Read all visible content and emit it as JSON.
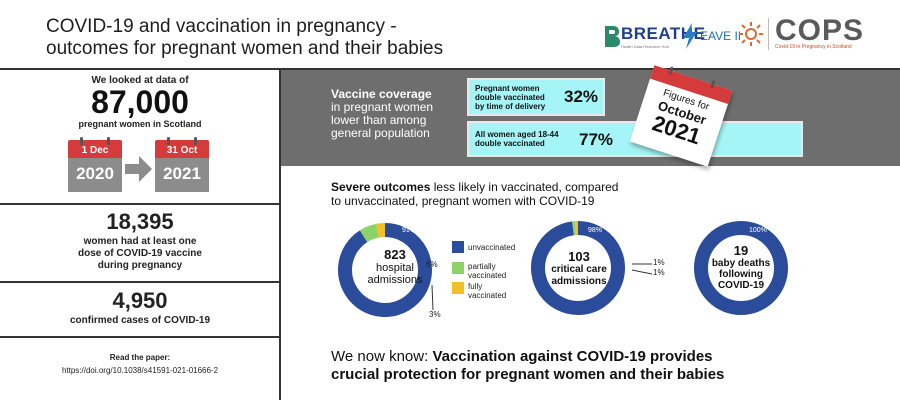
{
  "header": {
    "title_line1": "COVID-19 and vaccination in pregnancy -",
    "title_line2": "outcomes for pregnant women and their babies",
    "logos": {
      "breathe": "BREATHE",
      "breathe_sub": "Health Data Research Hub",
      "eave": "EAVE II",
      "cops": "COPS",
      "cops_sub": "Covid-19 in Pregnancy in Scotland"
    }
  },
  "left": {
    "looked_at": "We looked at data of",
    "total": "87,000",
    "population": "pregnant women in Scotland",
    "start_day": "1 Dec",
    "start_year": "2020",
    "end_day": "31 Oct",
    "end_year": "2021",
    "vaccinated_count": "18,395",
    "vaccinated_text_1": "women had at least one",
    "vaccinated_text_2": "dose of COVID-19 vaccine",
    "vaccinated_text_3": "during pregnancy",
    "cases_count": "4,950",
    "cases_text": "confirmed cases of COVID-19",
    "paper_label": "Read the paper:",
    "paper_doi": "https://doi.org/10.1038/s41591-021-01666-2"
  },
  "coverage": {
    "heading": "Vaccine coverage",
    "sub1": "in pregnant women",
    "sub2": "lower than among",
    "sub3": "general population",
    "pregnant_label_1": "Pregnant women",
    "pregnant_label_2": "double vaccinated",
    "pregnant_label_3": "by time of delivery",
    "pregnant_pct": "32%",
    "all_label_1": "All women aged 18-44",
    "all_label_2": "double vaccinated",
    "all_pct": "77%",
    "cal_line1": "Figures for",
    "cal_line2": "October",
    "cal_line3": "2021"
  },
  "outcomes": {
    "heading_bold": "Severe outcomes",
    "heading_rest": " less likely in vaccinated, compared",
    "heading_line2": "to unvaccinated, pregnant women with COVID-19",
    "legend": [
      "unvaccinated",
      "partially",
      "vaccinated",
      "fully",
      "vaccinated"
    ],
    "donuts": [
      {
        "count": "823",
        "label1": "hospital",
        "label2": "admissions",
        "top_pct": "91%",
        "mid_pct": "6%",
        "bottom_pct": "3%"
      },
      {
        "count": "103",
        "label1": "critical care",
        "label2": "admissions",
        "top_pct": "98%",
        "side1": "1%",
        "side2": "1%"
      },
      {
        "count": "19",
        "label1": "baby deaths",
        "label2": "following",
        "label3": "COVID-19",
        "top_pct": "100%"
      }
    ],
    "colors": {
      "unvaccinated": "#2b4c9a",
      "partially": "#8dd36a",
      "fully": "#f3c027"
    }
  },
  "conclusion": {
    "prefix": "We now know: ",
    "bold1": "Vaccination against COVID-19 provides",
    "bold2": "crucial protection for pregnant women and their babies"
  }
}
